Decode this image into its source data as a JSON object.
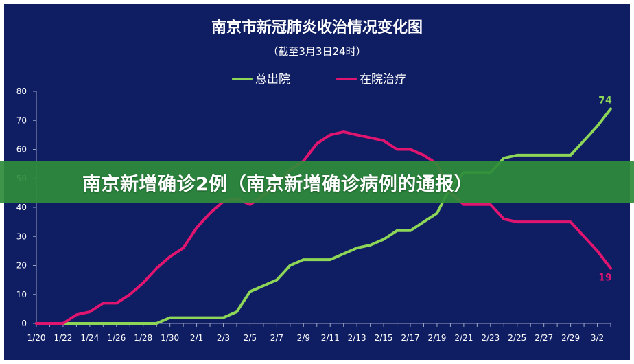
{
  "overlay": {
    "caption": "南京新增确诊2例（南京新增确诊病例的通报）"
  },
  "colors": {
    "background": "#0f1e63",
    "frame": "#ffffff",
    "text": "#ffffff",
    "axis": "#9aa3c4",
    "banner": "#2e8c3a",
    "series_total_discharged": "#8ed657",
    "series_hospitalized": "#e0156f"
  },
  "chart_data": {
    "type": "line",
    "title": "南京市新冠肺炎收治情况变化图",
    "subtitle": "（截至3月3日24时）",
    "xlabel": "",
    "ylabel": "",
    "ylim": [
      0,
      80
    ],
    "yticks": [
      "0",
      "10",
      "20",
      "30",
      "40",
      "50",
      "60",
      "70",
      "80"
    ],
    "grid": false,
    "legend": "top-center",
    "x": [
      "1/20",
      "1/21",
      "1/22",
      "1/23",
      "1/24",
      "1/25",
      "1/26",
      "1/27",
      "1/28",
      "1/29",
      "1/30",
      "1/31",
      "2/1",
      "2/2",
      "2/3",
      "2/4",
      "2/5",
      "2/6",
      "2/7",
      "2/8",
      "2/9",
      "2/10",
      "2/11",
      "2/12",
      "2/13",
      "2/14",
      "2/15",
      "2/16",
      "2/17",
      "2/18",
      "2/19",
      "2/20",
      "2/21",
      "2/22",
      "2/23",
      "2/24",
      "2/25",
      "2/26",
      "2/27",
      "2/28",
      "2/29",
      "3/1",
      "3/2",
      "3/3"
    ],
    "xtick_labels": [
      "1/20",
      "1/22",
      "1/24",
      "1/26",
      "1/28",
      "1/30",
      "2/1",
      "2/3",
      "2/5",
      "2/7",
      "2/9",
      "2/11",
      "2/13",
      "2/15",
      "2/17",
      "2/19",
      "2/21",
      "2/23",
      "2/25",
      "2/27",
      "2/29",
      "3/2"
    ],
    "series": [
      {
        "name": "总出院",
        "values": [
          0,
          0,
          0,
          0,
          0,
          0,
          0,
          0,
          0,
          0,
          2,
          2,
          2,
          2,
          2,
          4,
          11,
          13,
          15,
          20,
          22,
          22,
          22,
          24,
          26,
          27,
          29,
          32,
          32,
          35,
          38,
          47,
          52,
          52,
          52,
          57,
          58,
          58,
          58,
          58,
          58,
          63,
          68,
          74
        ],
        "end_label": "74"
      },
      {
        "name": "在院治疗",
        "values": [
          0,
          0,
          0,
          3,
          4,
          7,
          7,
          10,
          14,
          19,
          23,
          26,
          33,
          38,
          42,
          43,
          41,
          44,
          48,
          53,
          56,
          62,
          65,
          66,
          65,
          64,
          63,
          60,
          60,
          58,
          55,
          45,
          41,
          41,
          41,
          36,
          35,
          35,
          35,
          35,
          35,
          30,
          25,
          19
        ],
        "end_label": "19"
      }
    ]
  }
}
